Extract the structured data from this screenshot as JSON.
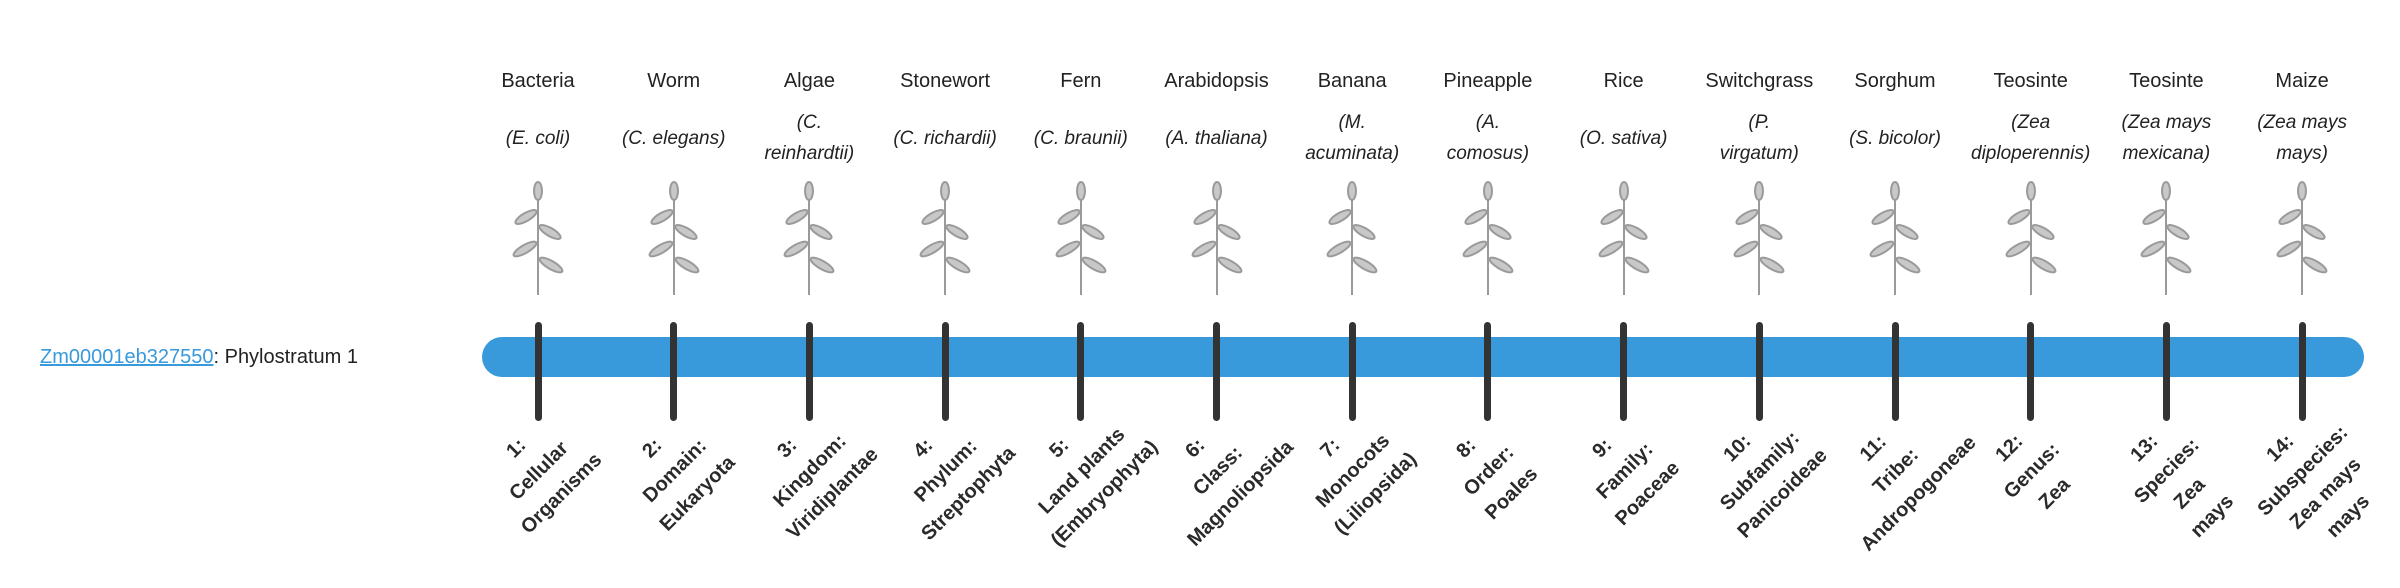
{
  "gene": {
    "id": "Zm00001eb327550",
    "suffix": ": Phylostratum 1"
  },
  "colors": {
    "bar": "#3899db",
    "tick": "#333333",
    "link": "#3899db"
  },
  "organisms": [
    {
      "common": "Bacteria",
      "sci": [
        "(E. coli)"
      ],
      "icon": "bacteria-icon",
      "rank": [
        "1:",
        "Cellular",
        "Organisms"
      ]
    },
    {
      "common": "Worm",
      "sci": [
        "(C. elegans)"
      ],
      "icon": "worm-icon",
      "rank": [
        "2:",
        "Domain:",
        "Eukaryota"
      ]
    },
    {
      "common": "Algae",
      "sci": [
        "(C.",
        "reinhardtii)"
      ],
      "icon": "algae-icon",
      "rank": [
        "3:",
        "Kingdom:",
        "Viridiplantae"
      ]
    },
    {
      "common": "Stonewort",
      "sci": [
        "(C. richardii)"
      ],
      "icon": "stonewort-icon",
      "rank": [
        "4:",
        "Phylum:",
        "Streptophyta"
      ]
    },
    {
      "common": "Fern",
      "sci": [
        "(C. braunii)"
      ],
      "icon": "fern-icon",
      "rank": [
        "5:",
        "Land plants",
        "(Embryophyta)"
      ]
    },
    {
      "common": "Arabidopsis",
      "sci": [
        "(A. thaliana)"
      ],
      "icon": "arabidopsis-icon",
      "rank": [
        "6:",
        "Class:",
        "Magnoliopsida"
      ]
    },
    {
      "common": "Banana",
      "sci": [
        "(M.",
        "acuminata)"
      ],
      "icon": "banana-icon",
      "rank": [
        "7:",
        "Monocots",
        "(Liliopsida)"
      ]
    },
    {
      "common": "Pineapple",
      "sci": [
        "(A.",
        "comosus)"
      ],
      "icon": "pineapple-icon",
      "rank": [
        "8:",
        "Order:",
        "Poales"
      ]
    },
    {
      "common": "Rice",
      "sci": [
        "(O. sativa)"
      ],
      "icon": "rice-icon",
      "rank": [
        "9:",
        "Family:",
        "Poaceae"
      ]
    },
    {
      "common": "Switchgrass",
      "sci": [
        "(P.",
        "virgatum)"
      ],
      "icon": "switchgrass-icon",
      "rank": [
        "10:",
        "Subfamily:",
        "Panicoideae"
      ]
    },
    {
      "common": "Sorghum",
      "sci": [
        "(S. bicolor)"
      ],
      "icon": "sorghum-icon",
      "rank": [
        "11:",
        "Tribe:",
        "Andropogoneae"
      ]
    },
    {
      "common": "Teosinte",
      "sci": [
        "(Zea",
        "diploperennis)"
      ],
      "icon": "teosinte-icon",
      "rank": [
        "12:",
        "Genus:",
        "Zea"
      ]
    },
    {
      "common": "Teosinte",
      "sci": [
        "(Zea mays",
        "mexicana)"
      ],
      "icon": "teosinte-mexicana-icon",
      "rank": [
        "13:",
        "Species:",
        "Zea",
        "mays"
      ]
    },
    {
      "common": "Maize",
      "sci": [
        "(Zea mays",
        "mays)"
      ],
      "icon": "maize-icon",
      "rank": [
        "14:",
        "Subspecies:",
        "Zea mays",
        "mays"
      ]
    }
  ]
}
